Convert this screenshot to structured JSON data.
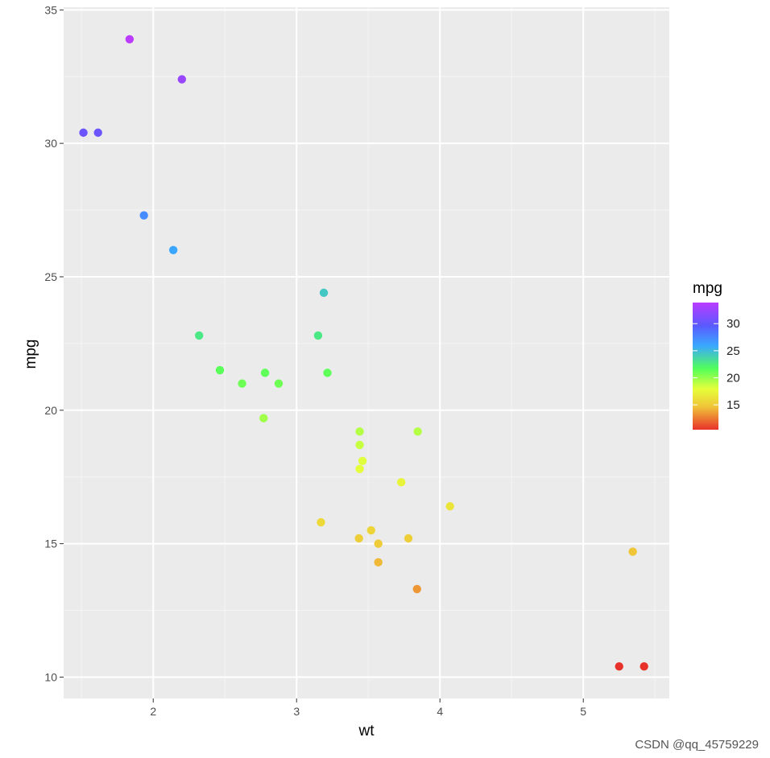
{
  "chart_data": {
    "type": "scatter",
    "xlabel": "wt",
    "ylabel": "mpg",
    "xlim": [
      1.375,
      5.6
    ],
    "ylim": [
      9.2,
      35.1
    ],
    "x_ticks": [
      2,
      3,
      4,
      5
    ],
    "y_ticks": [
      10,
      15,
      20,
      25,
      30,
      35
    ],
    "grid": true,
    "legend": {
      "title": "mpg",
      "placement": "right",
      "ticks": [
        30,
        25,
        20,
        15
      ],
      "range": [
        10.4,
        33.9
      ],
      "colors": [
        "#e8312b",
        "#f0c438",
        "#e6ff3a",
        "#52ff5a",
        "#3aa8ff",
        "#5a5aff",
        "#bb3bff"
      ]
    },
    "points": [
      {
        "x": 1.835,
        "y": 33.9
      },
      {
        "x": 2.2,
        "y": 32.4
      },
      {
        "x": 1.513,
        "y": 30.4
      },
      {
        "x": 1.615,
        "y": 30.4
      },
      {
        "x": 1.935,
        "y": 27.3
      },
      {
        "x": 2.14,
        "y": 26.0
      },
      {
        "x": 3.19,
        "y": 24.4
      },
      {
        "x": 2.32,
        "y": 22.8
      },
      {
        "x": 3.15,
        "y": 22.8
      },
      {
        "x": 2.465,
        "y": 21.5
      },
      {
        "x": 2.78,
        "y": 21.4
      },
      {
        "x": 3.215,
        "y": 21.4
      },
      {
        "x": 2.62,
        "y": 21.0
      },
      {
        "x": 2.875,
        "y": 21.0
      },
      {
        "x": 2.77,
        "y": 19.7
      },
      {
        "x": 3.44,
        "y": 19.2
      },
      {
        "x": 3.845,
        "y": 19.2
      },
      {
        "x": 3.44,
        "y": 18.7
      },
      {
        "x": 3.46,
        "y": 18.1
      },
      {
        "x": 3.44,
        "y": 17.8
      },
      {
        "x": 3.73,
        "y": 17.3
      },
      {
        "x": 4.07,
        "y": 16.4
      },
      {
        "x": 3.17,
        "y": 15.8
      },
      {
        "x": 3.52,
        "y": 15.5
      },
      {
        "x": 3.435,
        "y": 15.2
      },
      {
        "x": 3.78,
        "y": 15.2
      },
      {
        "x": 3.57,
        "y": 15.0
      },
      {
        "x": 5.345,
        "y": 14.7
      },
      {
        "x": 3.57,
        "y": 14.3
      },
      {
        "x": 3.84,
        "y": 13.3
      },
      {
        "x": 5.25,
        "y": 10.4
      },
      {
        "x": 5.424,
        "y": 10.4
      }
    ]
  },
  "watermark": "CSDN @qq_45759229"
}
